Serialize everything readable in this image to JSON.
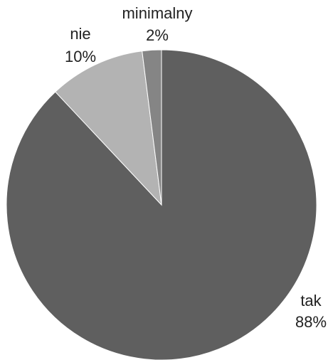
{
  "chart_data": {
    "type": "pie",
    "title": "",
    "legend": "none",
    "start": "top",
    "direction": "clockwise",
    "slices": [
      {
        "label": "tak",
        "value": 88,
        "value_label": "88%",
        "color": "#5f5f5f"
      },
      {
        "label": "nie",
        "value": 10,
        "value_label": "10%",
        "color": "#b3b3b3"
      },
      {
        "label": "minimalny",
        "value": 2,
        "value_label": "2%",
        "color": "#858585"
      }
    ]
  }
}
